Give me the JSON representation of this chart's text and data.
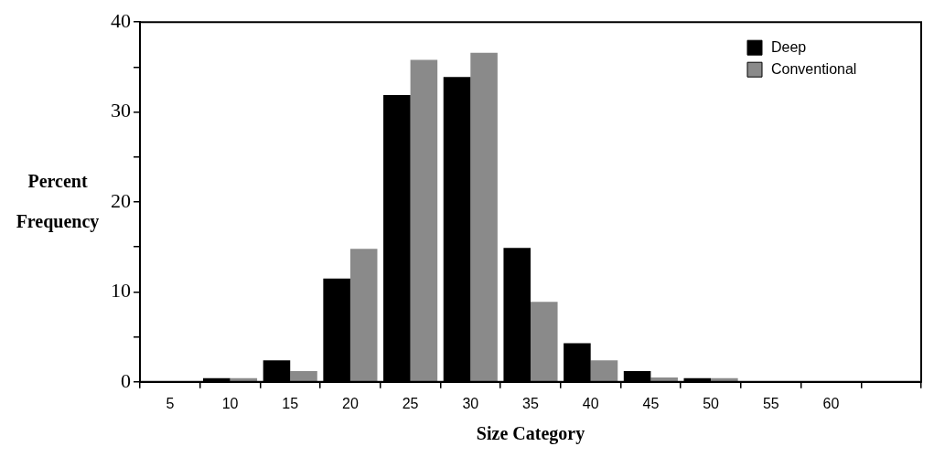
{
  "chart_data": {
    "type": "bar",
    "xlabel": "Size Category",
    "ylabel": "Percent Frequency",
    "categories": [
      "5",
      "10",
      "15",
      "20",
      "25",
      "30",
      "35",
      "40",
      "45",
      "50",
      "55",
      "60",
      null
    ],
    "series": [
      {
        "name": "Deep",
        "color": "#000000",
        "values": [
          0,
          0.4,
          2.4,
          11.5,
          31.9,
          33.9,
          14.9,
          4.3,
          1.2,
          0.4,
          0,
          0,
          0
        ]
      },
      {
        "name": "Conventional",
        "color": "#8a8a8a",
        "values": [
          0,
          0.4,
          1.2,
          14.8,
          35.8,
          36.6,
          8.9,
          2.4,
          0.5,
          0.4,
          0,
          0,
          0
        ]
      }
    ],
    "ylim": [
      0,
      40
    ],
    "yticks": [
      0,
      {
        "value": 5,
        "label": null
      },
      10,
      {
        "value": 15,
        "label": null
      },
      20,
      {
        "value": 25,
        "label": null
      },
      30,
      {
        "value": 35,
        "label": null
      },
      40
    ],
    "grid": false,
    "legend": "top right"
  }
}
